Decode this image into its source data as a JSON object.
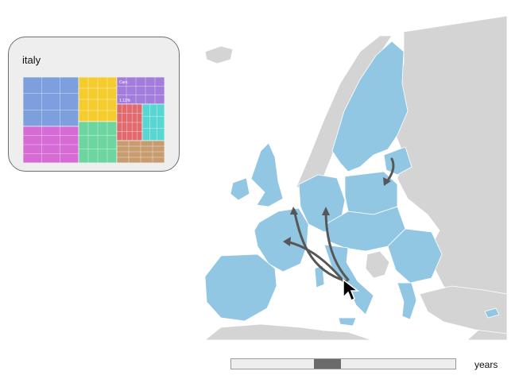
{
  "popup": {
    "country_label": "italy",
    "treemap": {
      "sectors": [
        {
          "name": "",
          "color": "#7d9fde",
          "share": 0.26
        },
        {
          "name": "",
          "color": "#f5cc2e",
          "share": 0.12
        },
        {
          "name": "",
          "color": "#a27ddc",
          "share": 0.12
        },
        {
          "name": "",
          "color": "#d76bd6",
          "share": 0.14
        },
        {
          "name": "",
          "color": "#6dd5a0",
          "share": 0.12
        },
        {
          "name": "",
          "color": "#e06a6e",
          "share": 0.1
        },
        {
          "name": "",
          "color": "#58d7d2",
          "share": 0.06
        },
        {
          "name": "",
          "color": "#c79d70",
          "share": 0.08
        }
      ],
      "labels": [
        "Cars",
        "1.13%"
      ]
    }
  },
  "map": {
    "highlight_color": "#92c7e3",
    "background_land_color": "#d4d4d4",
    "arrow_color": "#575757"
  },
  "timeline": {
    "label": "years",
    "position": 0.42
  }
}
